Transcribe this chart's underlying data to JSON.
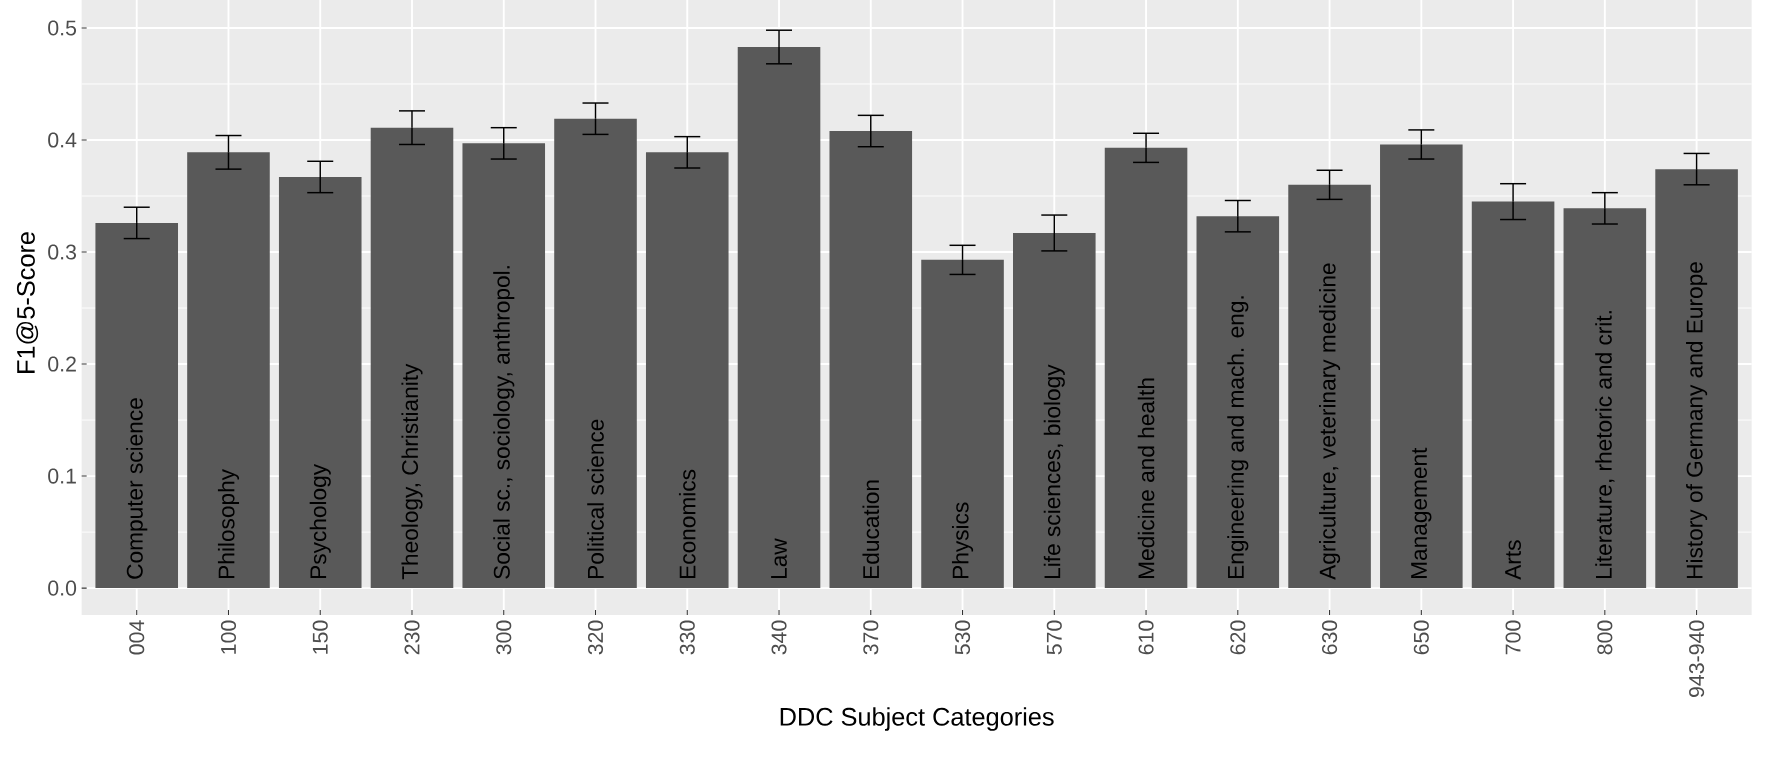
{
  "chart_data": {
    "type": "bar",
    "xlabel": "DDC Subject Categories",
    "ylabel": "F1@5-Score",
    "categories": [
      "004",
      "100",
      "150",
      "230",
      "300",
      "320",
      "330",
      "340",
      "370",
      "530",
      "570",
      "610",
      "620",
      "630",
      "650",
      "700",
      "800",
      "943-940"
    ],
    "values": [
      0.326,
      0.389,
      0.367,
      0.411,
      0.397,
      0.419,
      0.389,
      0.483,
      0.408,
      0.293,
      0.317,
      0.393,
      0.332,
      0.36,
      0.396,
      0.345,
      0.339,
      0.374
    ],
    "errors": [
      0.014,
      0.015,
      0.014,
      0.015,
      0.014,
      0.014,
      0.014,
      0.015,
      0.014,
      0.013,
      0.016,
      0.013,
      0.014,
      0.013,
      0.013,
      0.016,
      0.014,
      0.014
    ],
    "color": "#595959",
    "ylim": [
      -0.024,
      0.533
    ],
    "yticks": [
      {
        "value": 0,
        "label": "0.0"
      },
      0.1,
      0.2,
      0.3,
      0.4,
      0.5
    ],
    "grid": true,
    "annotations": [
      {
        "text": "Computer science",
        "x": "004",
        "y": 0
      },
      {
        "text": "Philosophy",
        "x": "100",
        "y": 0
      },
      {
        "text": "Psychology",
        "x": "150",
        "y": 0
      },
      {
        "text": "Theology, Christianity",
        "x": "230",
        "y": 0
      },
      {
        "text": "Social sc., sociology, anthropol.",
        "x": "300",
        "y": 0
      },
      {
        "text": "Political science",
        "x": "320",
        "y": 0
      },
      {
        "text": "Economics",
        "x": "330",
        "y": 0
      },
      {
        "text": "Law",
        "x": "340",
        "y": 0
      },
      {
        "text": "Education",
        "x": "370",
        "y": 0
      },
      {
        "text": "Physics",
        "x": "530",
        "y": 0
      },
      {
        "text": "Life sciences, biology",
        "x": "570",
        "y": 0
      },
      {
        "text": "Medicine and health",
        "x": "610",
        "y": 0
      },
      {
        "text": "Engineering and mach. eng.",
        "x": "620",
        "y": 0
      },
      {
        "text": "Agriculture, veterinary medicine",
        "x": "630",
        "y": 0
      },
      {
        "text": "Management",
        "x": "650",
        "y": 0
      },
      {
        "text": "Arts",
        "x": "700",
        "y": 0
      },
      {
        "text": "Literature, rhetoric and crit.",
        "x": "800",
        "y": 0
      },
      {
        "text": "History of Germany and Europe",
        "x": "943-940",
        "y": 0
      }
    ]
  }
}
